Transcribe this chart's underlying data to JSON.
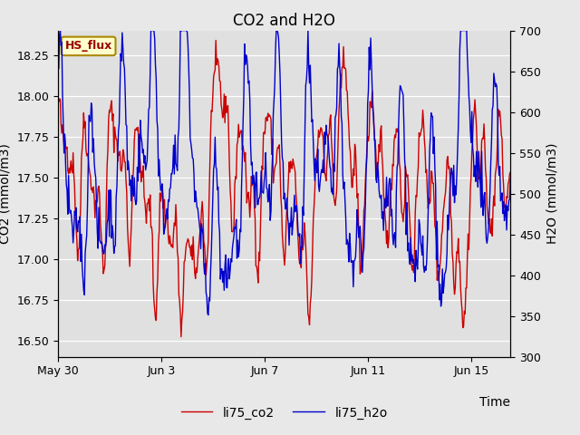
{
  "title": "CO2 and H2O",
  "xlabel": "Time",
  "ylabel_left": "CO2 (mmol/m3)",
  "ylabel_right": "H2O (mmol/m3)",
  "ylim_left": [
    16.4,
    18.4
  ],
  "ylim_right": [
    300,
    700
  ],
  "xtick_labels": [
    "May 30",
    "Jun 3",
    "Jun 7",
    "Jun 11",
    "Jun 15"
  ],
  "xtick_days_from_start": [
    0,
    4,
    8,
    12,
    16
  ],
  "total_days": 17.5,
  "n_points": 600,
  "line_color_co2": "#cc0000",
  "line_color_h2o": "#0000cc",
  "fig_facecolor": "#e8e8e8",
  "plot_bg_color": "#e0e0e0",
  "grid_color": "#ffffff",
  "label_box_text": "HS_flux",
  "label_box_bg": "#ffffcc",
  "label_box_edge": "#aa8800",
  "label_box_text_color": "#990000",
  "legend_label_co2": "li75_co2",
  "legend_label_h2o": "li75_h2o",
  "title_fontsize": 12,
  "axis_label_fontsize": 10,
  "tick_fontsize": 9,
  "legend_fontsize": 10,
  "line_width": 1.0,
  "seed": 42
}
